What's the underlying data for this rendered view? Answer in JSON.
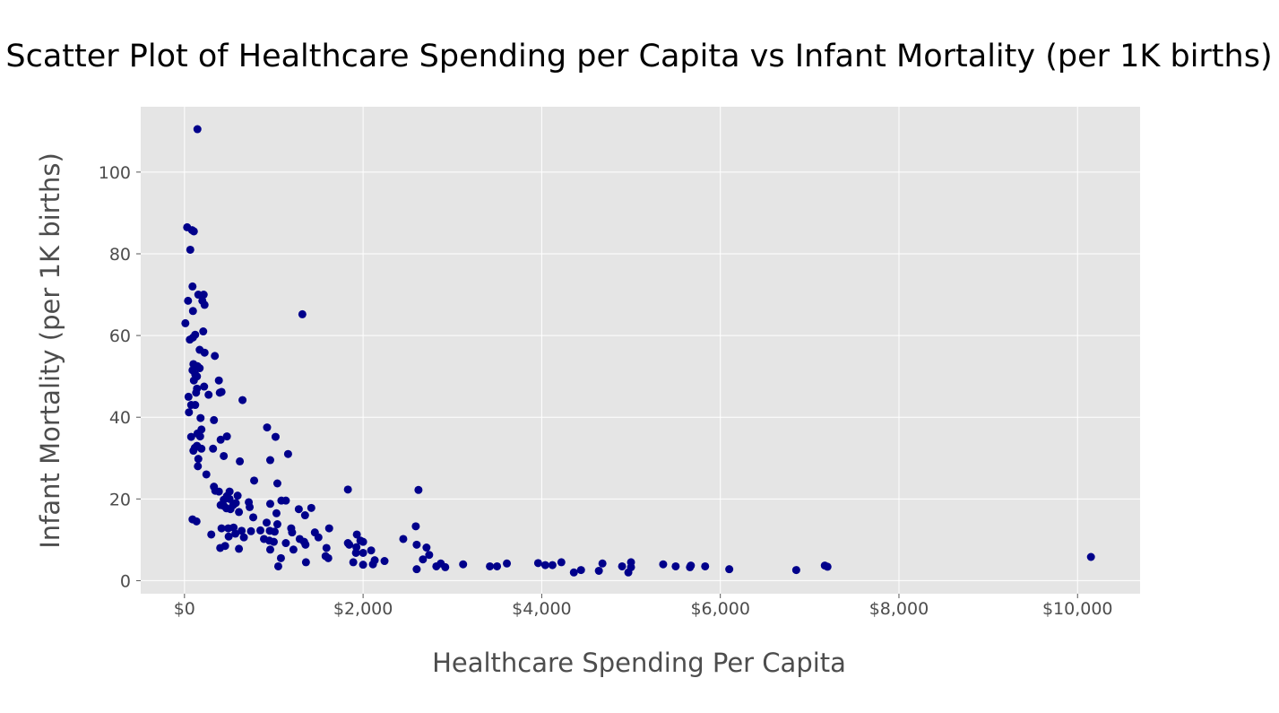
{
  "chart_data": {
    "type": "scatter",
    "title": "Scatter Plot of Healthcare Spending per Capita vs Infant Mortality (per 1K births)",
    "xlabel": "Healthcare Spending Per Capita",
    "ylabel": "Infant Mortality (per 1K births)",
    "xlim": [
      -490,
      10700
    ],
    "ylim": [
      -3.2,
      116
    ],
    "x_ticks": [
      0,
      2000,
      4000,
      6000,
      8000,
      10000
    ],
    "x_tick_labels": [
      "$0",
      "$2,000",
      "$4,000",
      "$6,000",
      "$8,000",
      "$10,000"
    ],
    "y_ticks": [
      0,
      20,
      40,
      60,
      80,
      100
    ],
    "y_tick_labels": [
      "0",
      "20",
      "40",
      "60",
      "80",
      "100"
    ],
    "grid": true,
    "background_color": "#e5e5e5",
    "marker_color": "#00008b",
    "points": [
      [
        145,
        110.5
      ],
      [
        30,
        86.5
      ],
      [
        85,
        85.8
      ],
      [
        105,
        85.5
      ],
      [
        65,
        81
      ],
      [
        90,
        72
      ],
      [
        155,
        70
      ],
      [
        215,
        70
      ],
      [
        40,
        68.5
      ],
      [
        200,
        68.5
      ],
      [
        225,
        67.5
      ],
      [
        95,
        66
      ],
      [
        1320,
        65.2
      ],
      [
        10,
        63
      ],
      [
        120,
        60.2
      ],
      [
        210,
        61
      ],
      [
        95,
        59.5
      ],
      [
        60,
        59
      ],
      [
        170,
        56.5
      ],
      [
        225,
        55.8
      ],
      [
        340,
        55
      ],
      [
        100,
        53
      ],
      [
        145,
        52.5
      ],
      [
        170,
        52
      ],
      [
        90,
        51.5
      ],
      [
        120,
        50.5
      ],
      [
        140,
        50
      ],
      [
        105,
        49
      ],
      [
        385,
        49
      ],
      [
        140,
        47
      ],
      [
        220,
        47.5
      ],
      [
        130,
        46
      ],
      [
        395,
        46
      ],
      [
        415,
        46.2
      ],
      [
        270,
        45.5
      ],
      [
        45,
        45
      ],
      [
        75,
        43
      ],
      [
        120,
        43
      ],
      [
        650,
        44.2
      ],
      [
        50,
        41.2
      ],
      [
        180,
        39.8
      ],
      [
        330,
        39.3
      ],
      [
        925,
        37.5
      ],
      [
        190,
        37
      ],
      [
        145,
        36
      ],
      [
        175,
        35.3
      ],
      [
        75,
        35.2
      ],
      [
        475,
        35.3
      ],
      [
        1020,
        35.2
      ],
      [
        405,
        34.5
      ],
      [
        140,
        33
      ],
      [
        115,
        32.5
      ],
      [
        190,
        32.3
      ],
      [
        320,
        32.3
      ],
      [
        100,
        31.8
      ],
      [
        1160,
        31
      ],
      [
        440,
        30.5
      ],
      [
        960,
        29.5
      ],
      [
        155,
        29.8
      ],
      [
        620,
        29.2
      ],
      [
        150,
        28
      ],
      [
        245,
        26
      ],
      [
        780,
        24.5
      ],
      [
        1040,
        23.8
      ],
      [
        330,
        23
      ],
      [
        345,
        22
      ],
      [
        385,
        21.8
      ],
      [
        505,
        21.8
      ],
      [
        1830,
        22.3
      ],
      [
        2620,
        22.2
      ],
      [
        475,
        20.7
      ],
      [
        595,
        20.8
      ],
      [
        505,
        20
      ],
      [
        440,
        19.8
      ],
      [
        1085,
        19.6
      ],
      [
        1135,
        19.6
      ],
      [
        720,
        19.2
      ],
      [
        960,
        18.8
      ],
      [
        575,
        19
      ],
      [
        405,
        18.5
      ],
      [
        440,
        18.3
      ],
      [
        545,
        18.5
      ],
      [
        730,
        18
      ],
      [
        470,
        17.7
      ],
      [
        515,
        17.5
      ],
      [
        1280,
        17.5
      ],
      [
        1420,
        17.8
      ],
      [
        610,
        16.8
      ],
      [
        1350,
        16
      ],
      [
        1030,
        16.5
      ],
      [
        770,
        15.5
      ],
      [
        90,
        15
      ],
      [
        135,
        14.5
      ],
      [
        920,
        14.2
      ],
      [
        1040,
        13.8
      ],
      [
        2590,
        13.3
      ],
      [
        490,
        12.8
      ],
      [
        415,
        12.8
      ],
      [
        550,
        13
      ],
      [
        1195,
        12.8
      ],
      [
        1620,
        12.8
      ],
      [
        850,
        12.3
      ],
      [
        955,
        12.2
      ],
      [
        640,
        12.2
      ],
      [
        745,
        12.1
      ],
      [
        1010,
        12
      ],
      [
        1205,
        11.8
      ],
      [
        1460,
        11.8
      ],
      [
        1930,
        11.3
      ],
      [
        300,
        11.3
      ],
      [
        570,
        11.5
      ],
      [
        495,
        10.8
      ],
      [
        665,
        10.6
      ],
      [
        890,
        10.2
      ],
      [
        1290,
        10.2
      ],
      [
        1500,
        10.6
      ],
      [
        2450,
        10.2
      ],
      [
        950,
        9.8
      ],
      [
        1000,
        9.5
      ],
      [
        1135,
        9.2
      ],
      [
        1340,
        9.5
      ],
      [
        1970,
        9.8
      ],
      [
        2000,
        9.5
      ],
      [
        1830,
        9.2
      ],
      [
        1845,
        8.8
      ],
      [
        2600,
        8.8
      ],
      [
        455,
        8.5
      ],
      [
        1355,
        8.8
      ],
      [
        1925,
        8.2
      ],
      [
        400,
        8
      ],
      [
        610,
        7.8
      ],
      [
        960,
        7.6
      ],
      [
        1220,
        7.6
      ],
      [
        1590,
        8
      ],
      [
        2090,
        7.4
      ],
      [
        2710,
        8.1
      ],
      [
        1920,
        6.8
      ],
      [
        2000,
        6.8
      ],
      [
        2740,
        6.3
      ],
      [
        1080,
        5.5
      ],
      [
        1580,
        6
      ],
      [
        1610,
        5.5
      ],
      [
        1360,
        4.5
      ],
      [
        1890,
        4.5
      ],
      [
        2240,
        4.8
      ],
      [
        2130,
        5
      ],
      [
        2670,
        5.2
      ],
      [
        10150,
        5.8
      ],
      [
        1050,
        3.5
      ],
      [
        2000,
        3.9
      ],
      [
        2110,
        4
      ],
      [
        2600,
        2.8
      ],
      [
        2820,
        3.5
      ],
      [
        2870,
        4.2
      ],
      [
        2920,
        3.3
      ],
      [
        3120,
        4
      ],
      [
        3420,
        3.5
      ],
      [
        3500,
        3.5
      ],
      [
        3610,
        4.2
      ],
      [
        3960,
        4.3
      ],
      [
        4040,
        3.8
      ],
      [
        4120,
        3.8
      ],
      [
        4220,
        4.5
      ],
      [
        4360,
        2
      ],
      [
        4440,
        2.6
      ],
      [
        4640,
        2.4
      ],
      [
        4680,
        4.2
      ],
      [
        4900,
        3.5
      ],
      [
        4970,
        2
      ],
      [
        5000,
        4.5
      ],
      [
        5000,
        3.3
      ],
      [
        5360,
        4
      ],
      [
        5500,
        3.5
      ],
      [
        5660,
        3.3
      ],
      [
        5670,
        3.7
      ],
      [
        5830,
        3.5
      ],
      [
        6100,
        2.8
      ],
      [
        6850,
        2.6
      ],
      [
        7170,
        3.7
      ],
      [
        7200,
        3.4
      ]
    ]
  }
}
